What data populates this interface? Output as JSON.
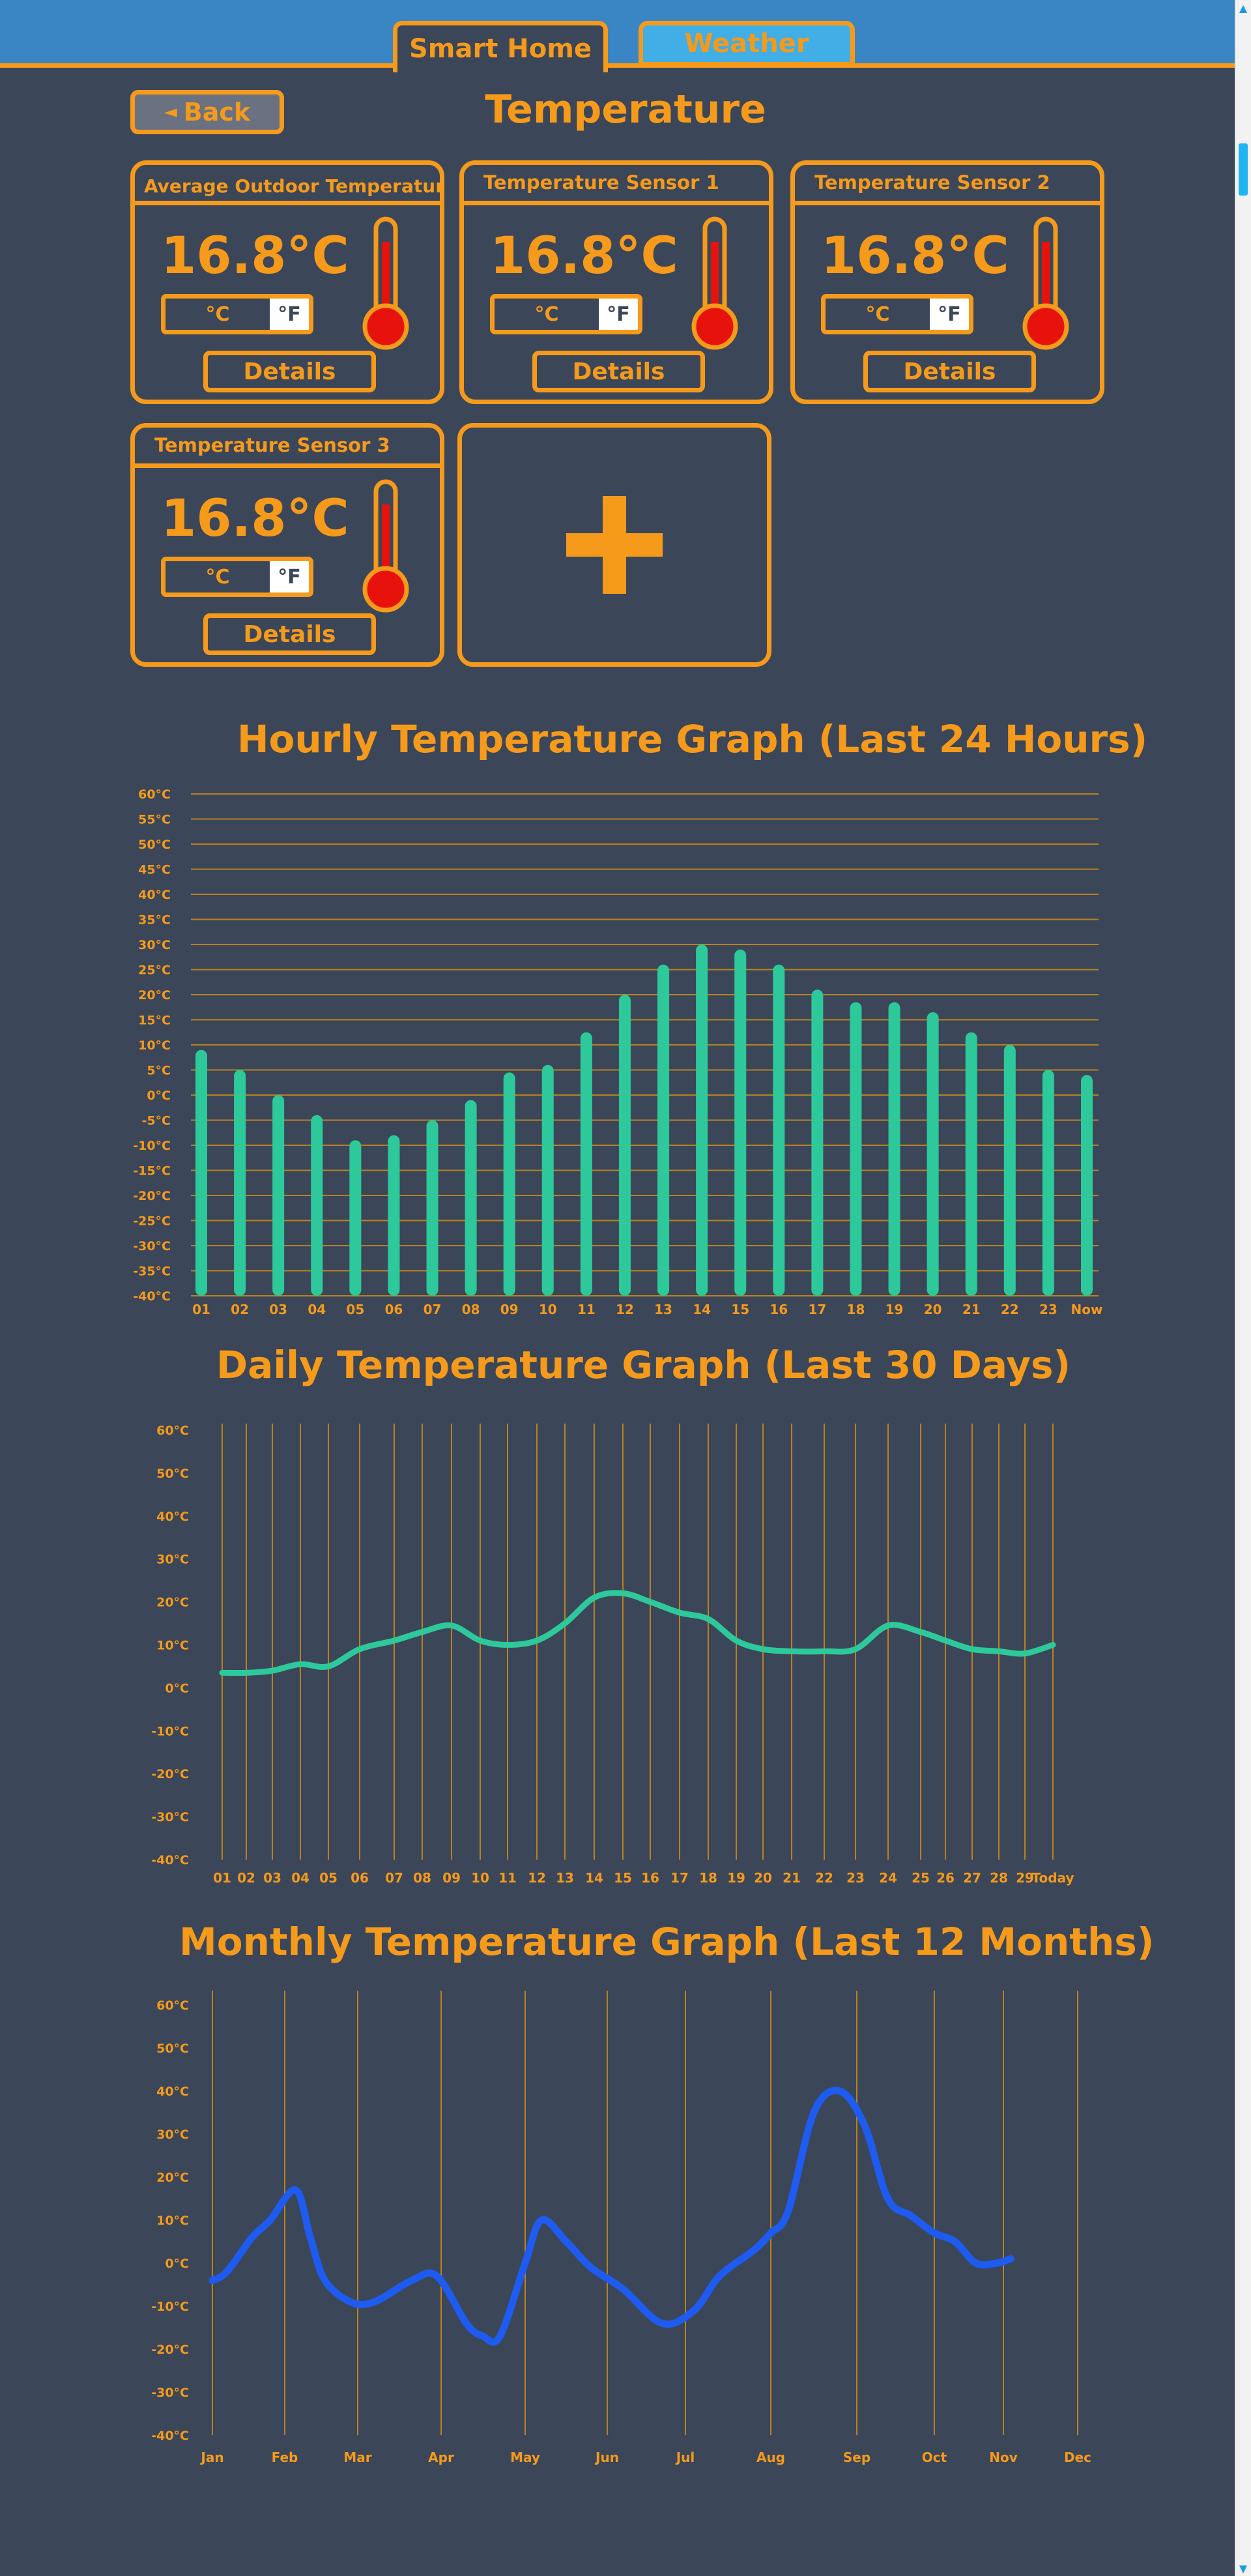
{
  "tabs": {
    "smart_home": "Smart Home",
    "weather": "Weather"
  },
  "back_label": "Back",
  "back_arrow": "◄",
  "page_title": "Temperature",
  "cards": [
    {
      "title": "Average Outdoor Temperature",
      "value": "16.8°C",
      "unit_c": "°C",
      "unit_f": "°F",
      "details": "Details"
    },
    {
      "title": "Temperature Sensor 1",
      "value": "16.8°C",
      "unit_c": "°C",
      "unit_f": "°F",
      "details": "Details"
    },
    {
      "title": "Temperature Sensor 2",
      "value": "16.8°C",
      "unit_c": "°C",
      "unit_f": "°F",
      "details": "Details"
    },
    {
      "title": "Temperature Sensor 3",
      "value": "16.8°C",
      "unit_c": "°C",
      "unit_f": "°F",
      "details": "Details"
    }
  ],
  "icons": [
    "thermometer-icon",
    "plus-icon",
    "back-arrow-icon",
    "scroll-up-icon",
    "scroll-down-icon"
  ],
  "colors": {
    "accent": "#f59a1b",
    "background": "#3b4659",
    "tab_bar": "#3a85c4",
    "weather_tab": "#42aee6",
    "hourly_bars": "#2dc99a",
    "daily_line": "#2dc99a",
    "monthly_line": "#1e5bf0",
    "thermo_red": "#e8120c"
  },
  "chart_data": [
    {
      "type": "bar",
      "title": "Hourly Temperature Graph (Last 24 Hours)",
      "categories": [
        "01",
        "02",
        "03",
        "04",
        "05",
        "06",
        "07",
        "08",
        "09",
        "10",
        "11",
        "12",
        "13",
        "14",
        "15",
        "16",
        "17",
        "18",
        "19",
        "20",
        "21",
        "22",
        "23",
        "Now"
      ],
      "values": [
        9,
        5,
        0,
        -4,
        -9,
        -8,
        -5,
        -1,
        4.5,
        6,
        12.5,
        20,
        26,
        30,
        29,
        26,
        21,
        18.5,
        18.5,
        16.5,
        12.5,
        10,
        5,
        4
      ],
      "y_ticks": [
        "60°C",
        "55°C",
        "50°C",
        "45°C",
        "40°C",
        "35°C",
        "30°C",
        "25°C",
        "20°C",
        "15°C",
        "10°C",
        "5°C",
        "0°C",
        "-5°C",
        "-10°C",
        "-15°C",
        "-20°C",
        "-25°C",
        "-30°C",
        "-35°C",
        "-40°C"
      ],
      "ylim": [
        -40,
        60
      ],
      "grid": "horizontal"
    },
    {
      "type": "line",
      "title": "Daily Temperature Graph (Last 30 Days)",
      "categories": [
        "01",
        "02",
        "03",
        "04",
        "05",
        "06",
        "07",
        "08",
        "09",
        "10",
        "11",
        "12",
        "13",
        "14",
        "15",
        "16",
        "17",
        "18",
        "19",
        "20",
        "21",
        "22",
        "23",
        "24",
        "25",
        "26",
        "27",
        "28",
        "29",
        "Today"
      ],
      "values": [
        3.5,
        3.5,
        4,
        5.5,
        5,
        9,
        11,
        13,
        14.5,
        11,
        10,
        11,
        15,
        21,
        22,
        20,
        17.5,
        16,
        11,
        9,
        8.5,
        8.5,
        9,
        14.5,
        13,
        11,
        9,
        8.5,
        8,
        10
      ],
      "y_ticks": [
        "60°C",
        "50°C",
        "40°C",
        "30°C",
        "20°C",
        "10°C",
        "0°C",
        "-10°C",
        "-20°C",
        "-30°C",
        "-40°C"
      ],
      "ylim": [
        -40,
        60
      ],
      "grid": "vertical"
    },
    {
      "type": "line",
      "title": "Monthly Temperature Graph (Last 12 Months)",
      "categories": [
        "Jan",
        "Feb",
        "Mar",
        "Apr",
        "May",
        "Jun",
        "Jul",
        "Aug",
        "Sep",
        "Oct",
        "Nov",
        "Dec"
      ],
      "points": [
        [
          0.0,
          -4
        ],
        [
          0.2,
          -2
        ],
        [
          0.55,
          6
        ],
        [
          0.8,
          10
        ],
        [
          1.15,
          17
        ],
        [
          1.35,
          6
        ],
        [
          1.55,
          -4
        ],
        [
          1.9,
          -9
        ],
        [
          2.2,
          -9
        ],
        [
          2.65,
          -4
        ],
        [
          2.95,
          -3
        ],
        [
          3.3,
          -14
        ],
        [
          3.5,
          -17
        ],
        [
          3.7,
          -17
        ],
        [
          4.0,
          0
        ],
        [
          4.2,
          10
        ],
        [
          4.5,
          5
        ],
        [
          4.8,
          -1
        ],
        [
          5.2,
          -6
        ],
        [
          5.7,
          -14
        ],
        [
          6.1,
          -11
        ],
        [
          6.4,
          -3
        ],
        [
          6.8,
          3
        ],
        [
          7.0,
          7
        ],
        [
          7.2,
          12
        ],
        [
          7.5,
          35
        ],
        [
          7.8,
          40
        ],
        [
          8.1,
          32
        ],
        [
          8.4,
          15
        ],
        [
          8.7,
          11
        ],
        [
          9.0,
          7
        ],
        [
          9.3,
          5
        ],
        [
          9.6,
          0
        ],
        [
          9.9,
          0
        ],
        [
          10.1,
          1
        ]
      ],
      "y_ticks": [
        "60°C",
        "50°C",
        "40°C",
        "30°C",
        "20°C",
        "10°C",
        "0°C",
        "-10°C",
        "-20°C",
        "-30°C",
        "-40°C"
      ],
      "ylim": [
        -40,
        60
      ],
      "grid": "vertical"
    }
  ]
}
